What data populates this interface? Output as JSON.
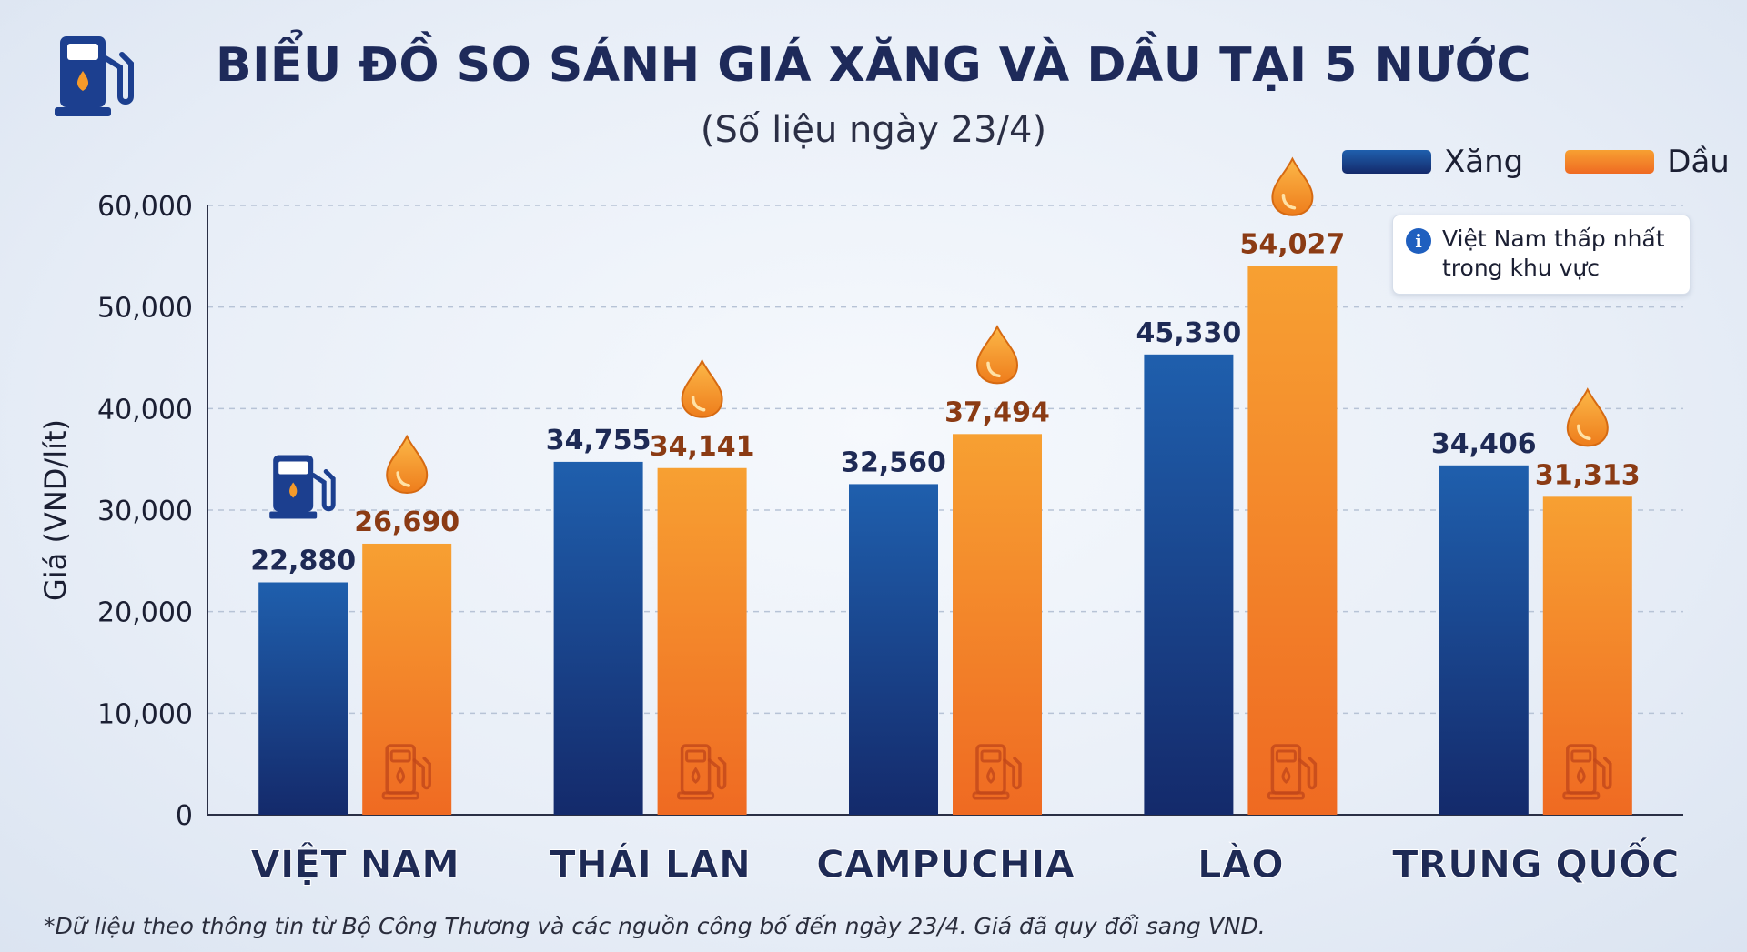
{
  "header": {
    "title": "BIỂU ĐỒ SO SÁNH GIÁ XĂNG VÀ DẦU TẠI 5 NƯỚC",
    "subtitle": "(Số liệu ngày 23/4)"
  },
  "icons": {
    "header": "fuel-pump-icon",
    "marker": "oil-drop-icon",
    "bar_base": "fuel-pump-outline-icon",
    "note": "info-icon"
  },
  "info_note": {
    "line1": "Việt Nam thấp nhất",
    "line2": "trong khu vực"
  },
  "footnote": "*Dữ liệu theo thông tin từ Bộ Công Thương và các nguồn công bố đến ngày 23/4. Giá đã quy đổi sang VND.",
  "colors": {
    "xang_top": "#1f5fad",
    "xang_bottom": "#142a6b",
    "dau_top": "#f7a032",
    "dau_bottom": "#ef6a22",
    "xang_label": "#1e2a55",
    "dau_label": "#8b3b14"
  },
  "chart_data": {
    "type": "bar",
    "categories": [
      "VIỆT NAM",
      "THÁI LAN",
      "CAMPUCHIA",
      "LÀO",
      "TRUNG QUỐC"
    ],
    "series": [
      {
        "name": "Xăng",
        "values": [
          22880,
          34755,
          32560,
          45330,
          34406
        ],
        "labels": [
          "22,880",
          "34,755",
          "32,560",
          "45,330",
          "34,406"
        ]
      },
      {
        "name": "Dầu",
        "values": [
          26690,
          34141,
          37494,
          54027,
          31313
        ],
        "labels": [
          "26,690",
          "34,141",
          "37,494",
          "54,027",
          "31,313"
        ]
      }
    ],
    "ylabel": "Giá (VND/lít)",
    "ylim": [
      0,
      60000
    ],
    "yticks": [
      0,
      10000,
      20000,
      30000,
      40000,
      50000,
      60000
    ],
    "ytick_labels": [
      "0",
      "10,000",
      "20,000",
      "30,000",
      "40,000",
      "50,000",
      "60,000"
    ],
    "grid": true,
    "legend_position": "top-right"
  }
}
